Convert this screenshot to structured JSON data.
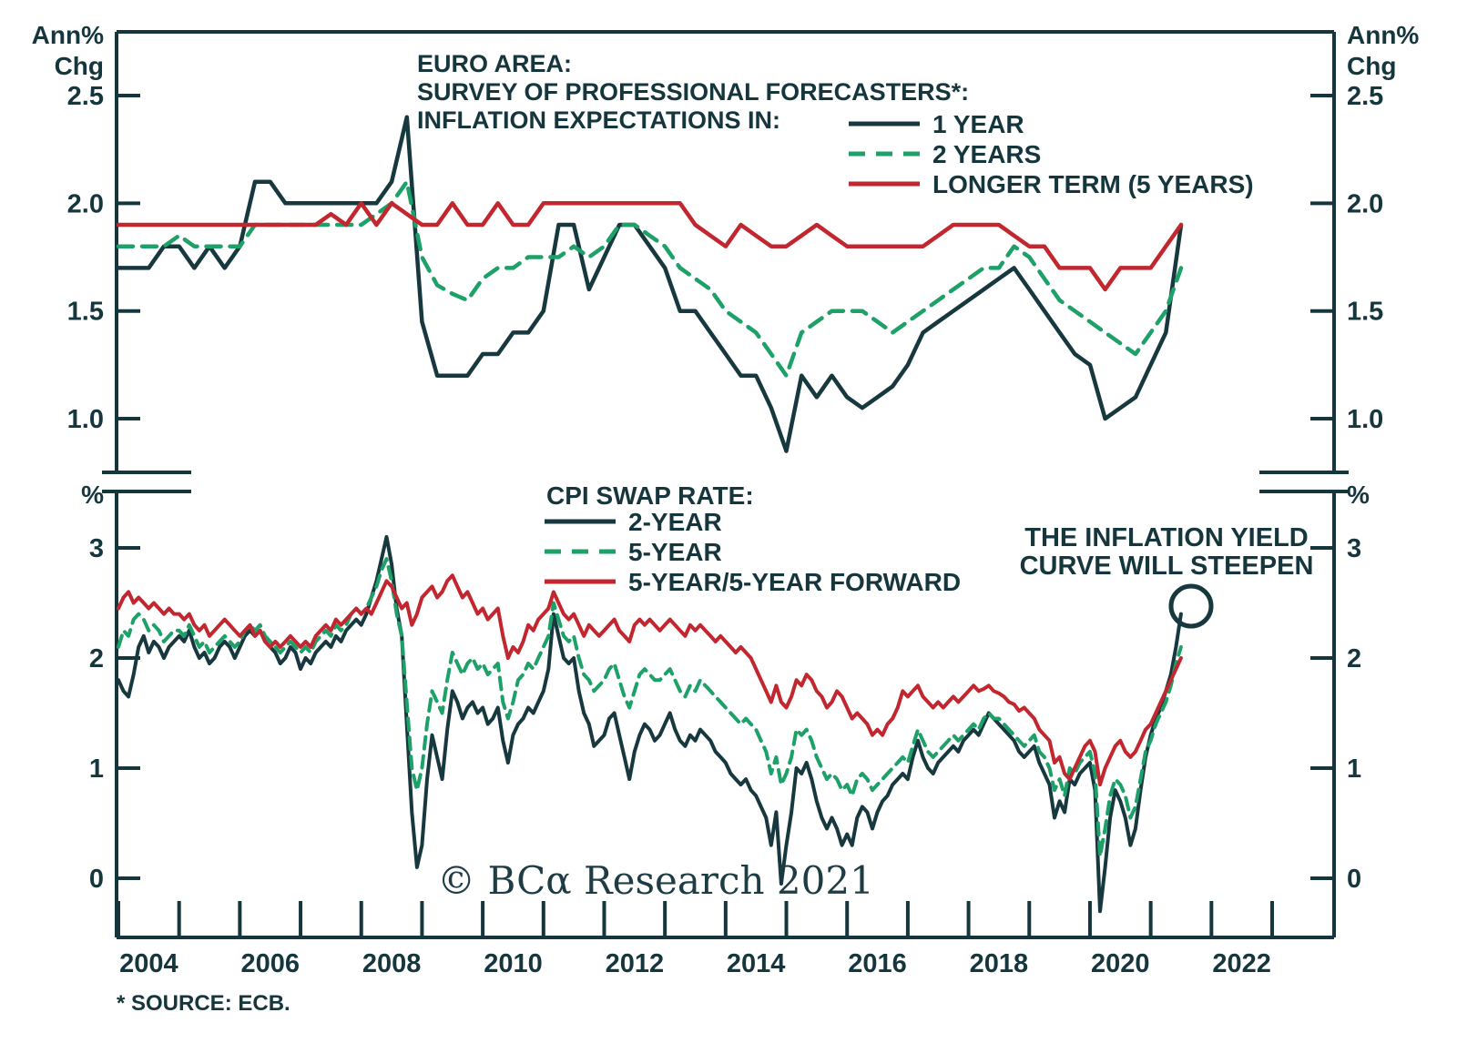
{
  "header": {
    "lines": [
      "EURO AREA:",
      "SURVEY OF PROFESSIONAL FORECASTERS*:",
      "INFLATION EXPECTATIONS IN:"
    ]
  },
  "annotation": {
    "line1": "THE INFLATION YIELD",
    "line2": "CURVE WILL STEEPEN",
    "color": "#c2262e"
  },
  "watermark": {
    "text": "© BCα Research 2021"
  },
  "footnote": {
    "text": "* SOURCE: ECB."
  },
  "axes": {
    "unit_top": [
      "Ann%",
      "Chg"
    ],
    "unit_bottom": "%",
    "top_tick_labels": [
      "2.5",
      "2.0",
      "1.5",
      "1.0"
    ],
    "bottom_tick_labels": [
      "3",
      "2",
      "1",
      "0"
    ],
    "x_tick_labels": [
      "2004",
      "2006",
      "2008",
      "2010",
      "2012",
      "2014",
      "2016",
      "2018",
      "2020",
      "2022"
    ]
  },
  "colors": {
    "dark": "#17383e",
    "green": "#1ea169",
    "red": "#c2262e",
    "background": "#ffffff"
  },
  "chart_data": [
    {
      "type": "line",
      "panel": "top",
      "title": "EURO AREA: SURVEY OF PROFESSIONAL FORECASTERS*: INFLATION EXPECTATIONS IN:",
      "ylabel": "Ann% Chg",
      "ylim": [
        0.75,
        2.8
      ],
      "yticks": [
        2.5,
        2.0,
        1.5,
        1.0
      ],
      "x_start": 2004.0,
      "x_step": 0.25,
      "x_end": 2021.5,
      "grid": false,
      "legend_position": "upper right",
      "series": [
        {
          "name": "1 YEAR",
          "color": "#17383e",
          "dash": false,
          "values": [
            1.7,
            1.7,
            1.7,
            1.8,
            1.8,
            1.7,
            1.8,
            1.7,
            1.8,
            2.1,
            2.1,
            2.0,
            2.0,
            2.0,
            2.0,
            2.0,
            2.0,
            2.0,
            2.1,
            2.4,
            1.45,
            1.2,
            1.2,
            1.2,
            1.3,
            1.3,
            1.4,
            1.4,
            1.5,
            1.9,
            1.9,
            1.6,
            1.75,
            1.9,
            1.9,
            1.8,
            1.7,
            1.5,
            1.5,
            1.4,
            1.3,
            1.2,
            1.2,
            1.05,
            0.85,
            1.2,
            1.1,
            1.2,
            1.1,
            1.05,
            1.1,
            1.15,
            1.25,
            1.4,
            1.45,
            1.5,
            1.55,
            1.6,
            1.65,
            1.7,
            1.6,
            1.5,
            1.4,
            1.3,
            1.25,
            1.0,
            1.05,
            1.1,
            1.25,
            1.4,
            1.9
          ]
        },
        {
          "name": "2 YEARS",
          "color": "#1ea169",
          "dash": true,
          "values": [
            1.8,
            1.8,
            1.8,
            1.8,
            1.85,
            1.8,
            1.8,
            1.8,
            1.8,
            1.9,
            1.9,
            1.9,
            1.9,
            1.9,
            1.9,
            1.9,
            1.9,
            1.95,
            2.0,
            2.1,
            1.75,
            1.62,
            1.58,
            1.55,
            1.65,
            1.7,
            1.7,
            1.75,
            1.75,
            1.75,
            1.8,
            1.75,
            1.8,
            1.9,
            1.9,
            1.85,
            1.8,
            1.7,
            1.65,
            1.6,
            1.5,
            1.45,
            1.4,
            1.3,
            1.2,
            1.4,
            1.45,
            1.5,
            1.5,
            1.5,
            1.45,
            1.4,
            1.45,
            1.5,
            1.55,
            1.6,
            1.65,
            1.7,
            1.7,
            1.8,
            1.75,
            1.65,
            1.55,
            1.5,
            1.45,
            1.4,
            1.35,
            1.3,
            1.4,
            1.5,
            1.7
          ]
        },
        {
          "name": "LONGER TERM (5 YEARS)",
          "color": "#c2262e",
          "dash": false,
          "values": [
            1.9,
            1.9,
            1.9,
            1.9,
            1.9,
            1.9,
            1.9,
            1.9,
            1.9,
            1.9,
            1.9,
            1.9,
            1.9,
            1.9,
            1.95,
            1.9,
            2.0,
            1.9,
            2.0,
            1.95,
            1.9,
            1.9,
            2.0,
            1.9,
            1.9,
            2.0,
            1.9,
            1.9,
            2.0,
            2.0,
            2.0,
            2.0,
            2.0,
            2.0,
            2.0,
            2.0,
            2.0,
            2.0,
            1.9,
            1.85,
            1.8,
            1.9,
            1.85,
            1.8,
            1.8,
            1.85,
            1.9,
            1.85,
            1.8,
            1.8,
            1.8,
            1.8,
            1.8,
            1.8,
            1.85,
            1.9,
            1.9,
            1.9,
            1.9,
            1.85,
            1.8,
            1.8,
            1.7,
            1.7,
            1.7,
            1.6,
            1.7,
            1.7,
            1.7,
            1.8,
            1.9
          ]
        }
      ]
    },
    {
      "type": "line",
      "panel": "bottom",
      "title": "CPI SWAP RATE:",
      "ylabel": "%",
      "ylim": [
        -0.42,
        3.49
      ],
      "yticks": [
        3,
        2,
        1,
        0
      ],
      "x_start": 2004.0,
      "x_step": 0.08333,
      "x_end": 2021.5,
      "grid": false,
      "legend_position": "upper left",
      "series": [
        {
          "name": "2-YEAR",
          "color": "#17383e",
          "dash": false,
          "values": [
            1.8,
            1.7,
            1.65,
            1.85,
            2.1,
            2.2,
            2.05,
            2.15,
            2.1,
            2.0,
            2.1,
            2.15,
            2.2,
            2.15,
            2.25,
            2.1,
            2.0,
            2.05,
            1.95,
            2.0,
            2.1,
            2.15,
            2.1,
            2.0,
            2.1,
            2.2,
            2.25,
            2.2,
            2.25,
            2.15,
            2.1,
            2.05,
            1.95,
            2.0,
            2.1,
            2.05,
            1.9,
            2.0,
            1.95,
            2.05,
            2.1,
            2.15,
            2.1,
            2.2,
            2.15,
            2.25,
            2.3,
            2.35,
            2.3,
            2.4,
            2.55,
            2.7,
            2.9,
            3.1,
            2.85,
            2.45,
            2.2,
            1.4,
            0.6,
            0.1,
            0.3,
            0.9,
            1.3,
            1.1,
            0.9,
            1.35,
            1.7,
            1.6,
            1.45,
            1.55,
            1.6,
            1.5,
            1.55,
            1.4,
            1.45,
            1.55,
            1.25,
            1.05,
            1.3,
            1.4,
            1.45,
            1.55,
            1.5,
            1.6,
            1.7,
            1.9,
            2.4,
            2.2,
            2.0,
            1.95,
            2.0,
            1.7,
            1.5,
            1.4,
            1.2,
            1.25,
            1.3,
            1.45,
            1.5,
            1.3,
            1.1,
            0.9,
            1.15,
            1.3,
            1.4,
            1.35,
            1.25,
            1.3,
            1.4,
            1.5,
            1.35,
            1.25,
            1.2,
            1.3,
            1.25,
            1.35,
            1.3,
            1.25,
            1.15,
            1.1,
            1.05,
            0.95,
            0.9,
            0.85,
            0.9,
            0.8,
            0.75,
            0.65,
            0.55,
            0.3,
            0.6,
            -0.05,
            0.3,
            0.6,
            1.0,
            0.95,
            1.05,
            0.9,
            0.7,
            0.55,
            0.45,
            0.55,
            0.45,
            0.3,
            0.4,
            0.3,
            0.55,
            0.65,
            0.6,
            0.45,
            0.6,
            0.7,
            0.75,
            0.85,
            0.9,
            0.95,
            0.9,
            1.1,
            1.25,
            1.1,
            1.0,
            0.95,
            1.05,
            1.1,
            1.15,
            1.2,
            1.15,
            1.25,
            1.3,
            1.35,
            1.3,
            1.4,
            1.5,
            1.45,
            1.4,
            1.35,
            1.3,
            1.25,
            1.15,
            1.1,
            1.15,
            1.2,
            1.05,
            0.95,
            0.85,
            0.55,
            0.7,
            0.6,
            0.9,
            0.85,
            0.95,
            1.0,
            1.05,
            0.8,
            -0.3,
            0.1,
            0.55,
            0.8,
            0.7,
            0.55,
            0.3,
            0.45,
            0.8,
            1.1,
            1.3,
            1.45,
            1.55,
            1.7,
            1.85,
            2.1,
            2.4
          ]
        },
        {
          "name": "5-YEAR",
          "color": "#1ea169",
          "dash": true,
          "values": [
            2.1,
            2.25,
            2.2,
            2.35,
            2.4,
            2.35,
            2.25,
            2.3,
            2.25,
            2.15,
            2.2,
            2.25,
            2.25,
            2.2,
            2.3,
            2.2,
            2.1,
            2.15,
            2.05,
            2.1,
            2.15,
            2.2,
            2.15,
            2.1,
            2.15,
            2.25,
            2.3,
            2.25,
            2.3,
            2.2,
            2.15,
            2.1,
            2.05,
            2.1,
            2.15,
            2.1,
            2.05,
            2.1,
            2.05,
            2.15,
            2.2,
            2.25,
            2.2,
            2.3,
            2.25,
            2.3,
            2.4,
            2.45,
            2.4,
            2.45,
            2.55,
            2.65,
            2.8,
            2.9,
            2.7,
            2.4,
            2.2,
            1.6,
            1.0,
            0.8,
            1.0,
            1.4,
            1.7,
            1.6,
            1.5,
            1.8,
            2.05,
            1.95,
            1.85,
            1.95,
            2.0,
            1.9,
            1.95,
            1.85,
            1.9,
            1.95,
            1.6,
            1.45,
            1.6,
            1.8,
            1.85,
            1.95,
            1.9,
            2.0,
            2.1,
            2.2,
            2.5,
            2.35,
            2.2,
            2.15,
            2.2,
            2.0,
            1.85,
            1.8,
            1.7,
            1.75,
            1.8,
            1.9,
            1.95,
            1.8,
            1.65,
            1.55,
            1.7,
            1.85,
            1.9,
            1.85,
            1.8,
            1.8,
            1.85,
            1.9,
            1.8,
            1.7,
            1.65,
            1.75,
            1.7,
            1.8,
            1.75,
            1.7,
            1.65,
            1.6,
            1.55,
            1.5,
            1.45,
            1.4,
            1.45,
            1.4,
            1.35,
            1.25,
            1.15,
            0.95,
            1.1,
            0.85,
            0.95,
            1.1,
            1.35,
            1.3,
            1.35,
            1.25,
            1.1,
            1.0,
            0.9,
            0.95,
            0.9,
            0.8,
            0.85,
            0.75,
            0.9,
            0.95,
            0.9,
            0.8,
            0.85,
            0.9,
            0.95,
            1.0,
            1.05,
            1.1,
            1.05,
            1.2,
            1.35,
            1.25,
            1.15,
            1.1,
            1.15,
            1.2,
            1.25,
            1.3,
            1.25,
            1.3,
            1.35,
            1.4,
            1.35,
            1.45,
            1.5,
            1.45,
            1.45,
            1.4,
            1.35,
            1.3,
            1.25,
            1.2,
            1.25,
            1.3,
            1.15,
            1.1,
            1.0,
            0.8,
            0.9,
            0.75,
            1.0,
            0.95,
            1.05,
            1.1,
            1.15,
            0.95,
            0.2,
            0.45,
            0.75,
            0.9,
            0.85,
            0.75,
            0.55,
            0.65,
            0.9,
            1.15,
            1.25,
            1.4,
            1.5,
            1.6,
            1.75,
            1.95,
            2.1
          ]
        },
        {
          "name": "5-YEAR/5-YEAR FORWARD",
          "color": "#c2262e",
          "dash": false,
          "values": [
            2.45,
            2.55,
            2.6,
            2.5,
            2.55,
            2.5,
            2.45,
            2.5,
            2.45,
            2.4,
            2.45,
            2.4,
            2.4,
            2.35,
            2.4,
            2.3,
            2.25,
            2.3,
            2.2,
            2.25,
            2.3,
            2.35,
            2.3,
            2.25,
            2.2,
            2.25,
            2.3,
            2.2,
            2.25,
            2.15,
            2.1,
            2.15,
            2.1,
            2.15,
            2.2,
            2.15,
            2.1,
            2.15,
            2.1,
            2.2,
            2.25,
            2.3,
            2.25,
            2.35,
            2.3,
            2.35,
            2.4,
            2.45,
            2.4,
            2.45,
            2.4,
            2.5,
            2.6,
            2.7,
            2.65,
            2.55,
            2.45,
            2.5,
            2.3,
            2.4,
            2.55,
            2.6,
            2.65,
            2.55,
            2.6,
            2.7,
            2.75,
            2.65,
            2.55,
            2.6,
            2.5,
            2.4,
            2.45,
            2.35,
            2.4,
            2.45,
            2.2,
            2.0,
            2.1,
            2.05,
            2.15,
            2.3,
            2.25,
            2.35,
            2.4,
            2.45,
            2.6,
            2.5,
            2.4,
            2.35,
            2.4,
            2.3,
            2.2,
            2.3,
            2.25,
            2.2,
            2.25,
            2.3,
            2.35,
            2.25,
            2.2,
            2.15,
            2.3,
            2.35,
            2.3,
            2.35,
            2.3,
            2.25,
            2.3,
            2.35,
            2.3,
            2.25,
            2.2,
            2.3,
            2.25,
            2.3,
            2.25,
            2.2,
            2.15,
            2.2,
            2.15,
            2.1,
            2.05,
            2.1,
            2.05,
            2.0,
            1.9,
            1.8,
            1.7,
            1.6,
            1.75,
            1.6,
            1.55,
            1.65,
            1.8,
            1.75,
            1.85,
            1.8,
            1.7,
            1.65,
            1.55,
            1.6,
            1.7,
            1.65,
            1.55,
            1.45,
            1.5,
            1.45,
            1.4,
            1.3,
            1.35,
            1.3,
            1.4,
            1.45,
            1.55,
            1.7,
            1.65,
            1.7,
            1.75,
            1.65,
            1.6,
            1.55,
            1.6,
            1.55,
            1.6,
            1.65,
            1.6,
            1.65,
            1.7,
            1.75,
            1.7,
            1.72,
            1.75,
            1.7,
            1.68,
            1.65,
            1.6,
            1.58,
            1.52,
            1.55,
            1.5,
            1.45,
            1.35,
            1.3,
            1.25,
            1.05,
            1.1,
            0.95,
            0.9,
            1.0,
            1.1,
            1.2,
            1.25,
            1.15,
            0.85,
            1.0,
            1.1,
            1.2,
            1.25,
            1.15,
            1.1,
            1.15,
            1.25,
            1.35,
            1.4,
            1.5,
            1.6,
            1.7,
            1.8,
            1.9,
            2.0
          ]
        }
      ]
    }
  ]
}
